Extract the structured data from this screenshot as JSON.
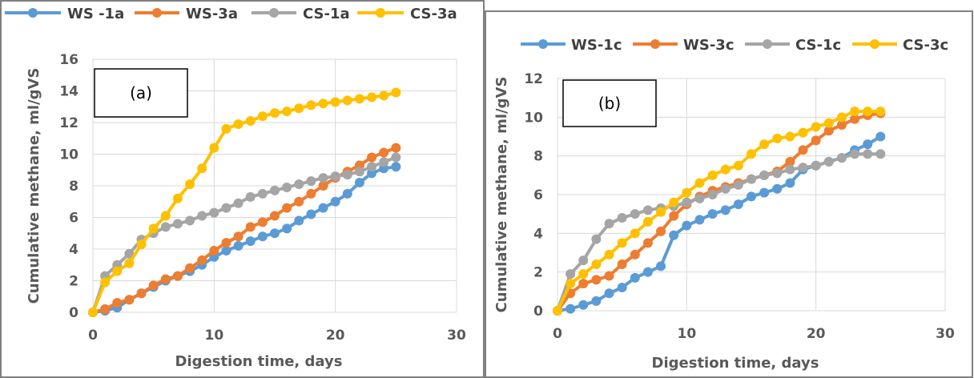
{
  "chart_data": [
    {
      "type": "line",
      "panel_label": "(a)",
      "xlabel": "Digestion time, days",
      "ylabel": "Cumulative methane, ml/gVS",
      "xlim": [
        0,
        30
      ],
      "ylim": [
        0,
        16
      ],
      "xticks": [
        0,
        10,
        20,
        30
      ],
      "yticks": [
        0,
        2,
        4,
        6,
        8,
        10,
        12,
        14,
        16
      ],
      "grid": true,
      "legend_position": "top",
      "x": [
        0,
        1,
        2,
        3,
        4,
        5,
        6,
        7,
        8,
        9,
        10,
        11,
        12,
        13,
        14,
        15,
        16,
        17,
        18,
        19,
        20,
        21,
        22,
        23,
        24,
        25
      ],
      "series": [
        {
          "name": "WS -1a",
          "color": "#5B9BD5",
          "values": [
            0,
            0.1,
            0.3,
            0.8,
            1.2,
            1.6,
            2.0,
            2.3,
            2.6,
            3.0,
            3.5,
            3.9,
            4.2,
            4.5,
            4.8,
            5.0,
            5.3,
            5.8,
            6.2,
            6.6,
            7.0,
            7.5,
            8.2,
            8.8,
            9.1,
            9.2
          ]
        },
        {
          "name": "WS-3a",
          "color": "#ED7D31",
          "values": [
            0,
            0.2,
            0.6,
            0.8,
            1.2,
            1.7,
            2.1,
            2.3,
            2.8,
            3.3,
            3.9,
            4.4,
            4.8,
            5.4,
            5.7,
            6.1,
            6.6,
            7.0,
            7.5,
            8.0,
            8.5,
            8.9,
            9.3,
            9.8,
            10.1,
            10.4
          ]
        },
        {
          "name": "CS-1a",
          "color": "#A5A5A5",
          "values": [
            0,
            2.3,
            3.0,
            3.7,
            4.6,
            5.0,
            5.4,
            5.6,
            5.8,
            6.1,
            6.3,
            6.6,
            6.9,
            7.3,
            7.5,
            7.7,
            7.9,
            8.1,
            8.3,
            8.5,
            8.6,
            8.7,
            8.9,
            9.2,
            9.5,
            9.8
          ]
        },
        {
          "name": "CS-3a",
          "color": "#FFC000",
          "values": [
            0,
            1.9,
            2.6,
            3.1,
            4.3,
            5.3,
            6.1,
            7.2,
            8.1,
            9.1,
            10.4,
            11.6,
            11.9,
            12.1,
            12.4,
            12.6,
            12.7,
            12.9,
            13.1,
            13.2,
            13.3,
            13.4,
            13.5,
            13.6,
            13.7,
            13.9
          ]
        }
      ]
    },
    {
      "type": "line",
      "panel_label": "(b)",
      "xlabel": "Digestion time, days",
      "ylabel": "Cumulative methane, ml/gVS",
      "xlim": [
        0,
        30
      ],
      "ylim": [
        0,
        12
      ],
      "xticks": [
        0,
        10,
        20,
        30
      ],
      "yticks": [
        0,
        2,
        4,
        6,
        8,
        10,
        12
      ],
      "grid": true,
      "legend_position": "top",
      "x": [
        0,
        1,
        2,
        3,
        4,
        5,
        6,
        7,
        8,
        9,
        10,
        11,
        12,
        13,
        14,
        15,
        16,
        17,
        18,
        19,
        20,
        21,
        22,
        23,
        24,
        25
      ],
      "series": [
        {
          "name": "WS-1c",
          "color": "#5B9BD5",
          "values": [
            0,
            0.1,
            0.3,
            0.5,
            0.9,
            1.2,
            1.7,
            2.0,
            2.3,
            3.9,
            4.4,
            4.7,
            5.0,
            5.2,
            5.5,
            5.9,
            6.1,
            6.3,
            6.6,
            7.3,
            7.5,
            7.7,
            7.9,
            8.3,
            8.6,
            9.0
          ]
        },
        {
          "name": "WS-3c",
          "color": "#ED7D31",
          "values": [
            0,
            0.9,
            1.4,
            1.6,
            1.8,
            2.4,
            2.9,
            3.5,
            4.1,
            4.9,
            5.5,
            5.9,
            6.2,
            6.4,
            6.6,
            6.8,
            7.0,
            7.2,
            7.7,
            8.3,
            8.8,
            9.3,
            9.6,
            9.9,
            10.1,
            10.2
          ]
        },
        {
          "name": "CS-1c",
          "color": "#A5A5A5",
          "values": [
            0,
            1.9,
            2.6,
            3.7,
            4.5,
            4.8,
            5.0,
            5.2,
            5.3,
            5.4,
            5.6,
            5.8,
            6.0,
            6.3,
            6.5,
            6.8,
            7.0,
            7.1,
            7.3,
            7.4,
            7.5,
            7.7,
            7.9,
            8.1,
            8.1,
            8.1
          ]
        },
        {
          "name": "CS-3c",
          "color": "#FFC000",
          "values": [
            0,
            1.4,
            1.9,
            2.4,
            2.9,
            3.5,
            4.0,
            4.6,
            5.1,
            5.6,
            6.1,
            6.6,
            7.0,
            7.3,
            7.5,
            8.1,
            8.6,
            8.9,
            9.0,
            9.2,
            9.5,
            9.7,
            10.0,
            10.3,
            10.3,
            10.3
          ]
        }
      ]
    }
  ]
}
